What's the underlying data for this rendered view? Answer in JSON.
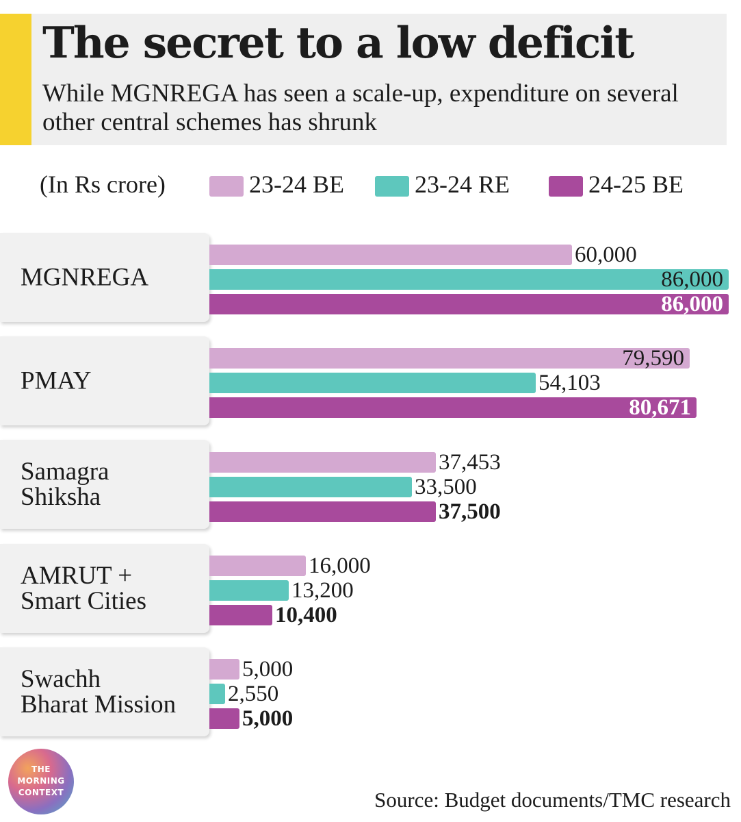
{
  "header": {
    "title": "The secret to a low deficit",
    "subtitle": "While MGNREGA has seen a scale-up, expenditure on several other central schemes has shrunk"
  },
  "unit_label": "(In Rs crore)",
  "colors": {
    "series_1": "#d4a9d1",
    "series_2": "#5ec7bd",
    "series_3": "#a84a9c",
    "accent": "#f6d22f",
    "header_bg": "#efefef"
  },
  "chart_data": {
    "type": "bar",
    "orientation": "horizontal",
    "categories": [
      "MGNREGA",
      "PMAY",
      "Samagra\nShiksha",
      "AMRUT +\nSmart Cities",
      "Swachh\nBharat Mission"
    ],
    "series": [
      {
        "name": "23-24 BE",
        "values": [
          60000,
          79590,
          37453,
          16000,
          5000
        ],
        "labels": [
          "60,000",
          "79,590",
          "37,453",
          "16,000",
          "5,000"
        ]
      },
      {
        "name": "23-24 RE",
        "values": [
          86000,
          54103,
          33500,
          13200,
          2550
        ],
        "labels": [
          "86,000",
          "54,103",
          "33,500",
          "13,200",
          "2,550"
        ]
      },
      {
        "name": "24-25 BE",
        "values": [
          86000,
          80671,
          37500,
          10400,
          5000
        ],
        "labels": [
          "86,000",
          "80,671",
          "37,500",
          "10,400",
          "5,000"
        ]
      }
    ],
    "xlim": [
      0,
      86000
    ],
    "legend": "top",
    "grid": false
  },
  "logo": {
    "text": "THE\nMORNING\nCONTEXT"
  },
  "source": "Source: Budget documents/TMC research"
}
